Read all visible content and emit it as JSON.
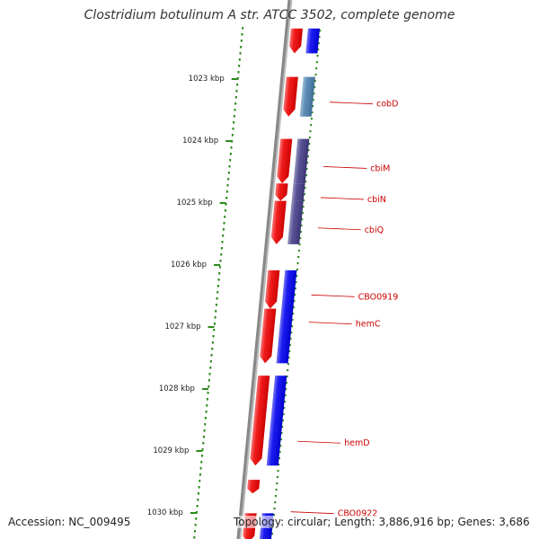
{
  "header": {
    "title": "Clostridium botulinum A str. ATCC 3502, complete genome"
  },
  "footer": {
    "accession": "Accession: NC_009495",
    "summary": "Topology: circular; Length: 3,886,916 bp; Genes: 3,686"
  },
  "colors": {
    "forward_gene": "#ee0000",
    "reverse_gene": "#0000ee",
    "cobD": "#4a7fae",
    "cbi_operon": "#443d88",
    "backbone": "#888888",
    "ticks": "#2a8a1a",
    "labels": "#cc0000"
  },
  "scale": {
    "unit": "kbp",
    "ticks": [
      "1023 kbp",
      "1024 kbp",
      "1025 kbp",
      "1026 kbp",
      "1027 kbp",
      "1028 kbp",
      "1029 kbp",
      "1030 kbp"
    ]
  },
  "genes": [
    {
      "label": "",
      "strand": "forward",
      "start_kbp": 1022.2,
      "end_kbp": 1022.6
    },
    {
      "label": "",
      "strand": "reverse",
      "start_kbp": 1022.2,
      "end_kbp": 1022.6,
      "color_key": "reverse_gene"
    },
    {
      "label": "cobD",
      "strand": "reverse",
      "start_kbp": 1022.98,
      "end_kbp": 1023.62,
      "color_key": "cobD"
    },
    {
      "label": "",
      "strand": "forward",
      "start_kbp": 1022.98,
      "end_kbp": 1023.62
    },
    {
      "label": "cbiM",
      "strand": "reverse",
      "start_kbp": 1023.98,
      "end_kbp": 1024.7,
      "color_key": "cbi_operon"
    },
    {
      "label": "cbiN",
      "strand": "reverse",
      "start_kbp": 1024.7,
      "end_kbp": 1024.98,
      "color_key": "cbi_operon"
    },
    {
      "label": "cbiQ",
      "strand": "reverse",
      "start_kbp": 1024.98,
      "end_kbp": 1025.68,
      "color_key": "cbi_operon"
    },
    {
      "label": "",
      "strand": "forward",
      "start_kbp": 1023.98,
      "end_kbp": 1024.7
    },
    {
      "label": "",
      "strand": "forward",
      "start_kbp": 1024.7,
      "end_kbp": 1024.98
    },
    {
      "label": "",
      "strand": "forward",
      "start_kbp": 1024.98,
      "end_kbp": 1025.68
    },
    {
      "label": "CBO0919",
      "strand": "forward",
      "start_kbp": 1026.1,
      "end_kbp": 1026.72
    },
    {
      "label": "",
      "strand": "forward",
      "start_kbp": 1026.72,
      "end_kbp": 1027.6
    },
    {
      "label": "hemC",
      "strand": "reverse",
      "start_kbp": 1026.1,
      "end_kbp": 1027.6,
      "color_key": "reverse_gene"
    },
    {
      "label": "hemD",
      "strand": "forward",
      "start_kbp": 1027.8,
      "end_kbp": 1029.25
    },
    {
      "label": "",
      "strand": "reverse",
      "start_kbp": 1027.8,
      "end_kbp": 1029.25,
      "color_key": "reverse_gene"
    },
    {
      "label": "CBO0922",
      "strand": "forward",
      "start_kbp": 1029.48,
      "end_kbp": 1029.7
    },
    {
      "label": "",
      "strand": "forward",
      "start_kbp": 1030.02,
      "end_kbp": 1030.5
    },
    {
      "label": "",
      "strand": "reverse",
      "start_kbp": 1030.02,
      "end_kbp": 1030.5,
      "color_key": "reverse_gene"
    }
  ]
}
